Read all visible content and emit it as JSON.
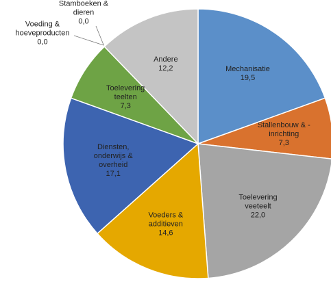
{
  "chart_data": {
    "type": "pie",
    "categories": [
      "Mechanisatie",
      "Stallenbouw & -\ninrichting",
      "Toelevering\nveeteelt",
      "Voeders &\nadditieven",
      "Diensten,\nonderwijs &\noverheid",
      "Toelevering\nteelten",
      "Voeding &\nhoeveproducten",
      "Stamboeken &\ndieren",
      "Andere"
    ],
    "values": [
      19.5,
      7.3,
      22.0,
      14.6,
      17.1,
      7.3,
      0.0,
      0.0,
      12.2
    ],
    "value_labels": [
      "19,5",
      "7,3",
      "22,0",
      "14,6",
      "17,1",
      "7,3",
      "0,0",
      "0,0",
      "12,2"
    ],
    "colors": [
      "#5b8fc9",
      "#d9722e",
      "#a5a5a5",
      "#e5a800",
      "#3d64b0",
      "#6ea345",
      "#4a7ec0",
      "#c45a20",
      "#c4c4c4"
    ]
  }
}
